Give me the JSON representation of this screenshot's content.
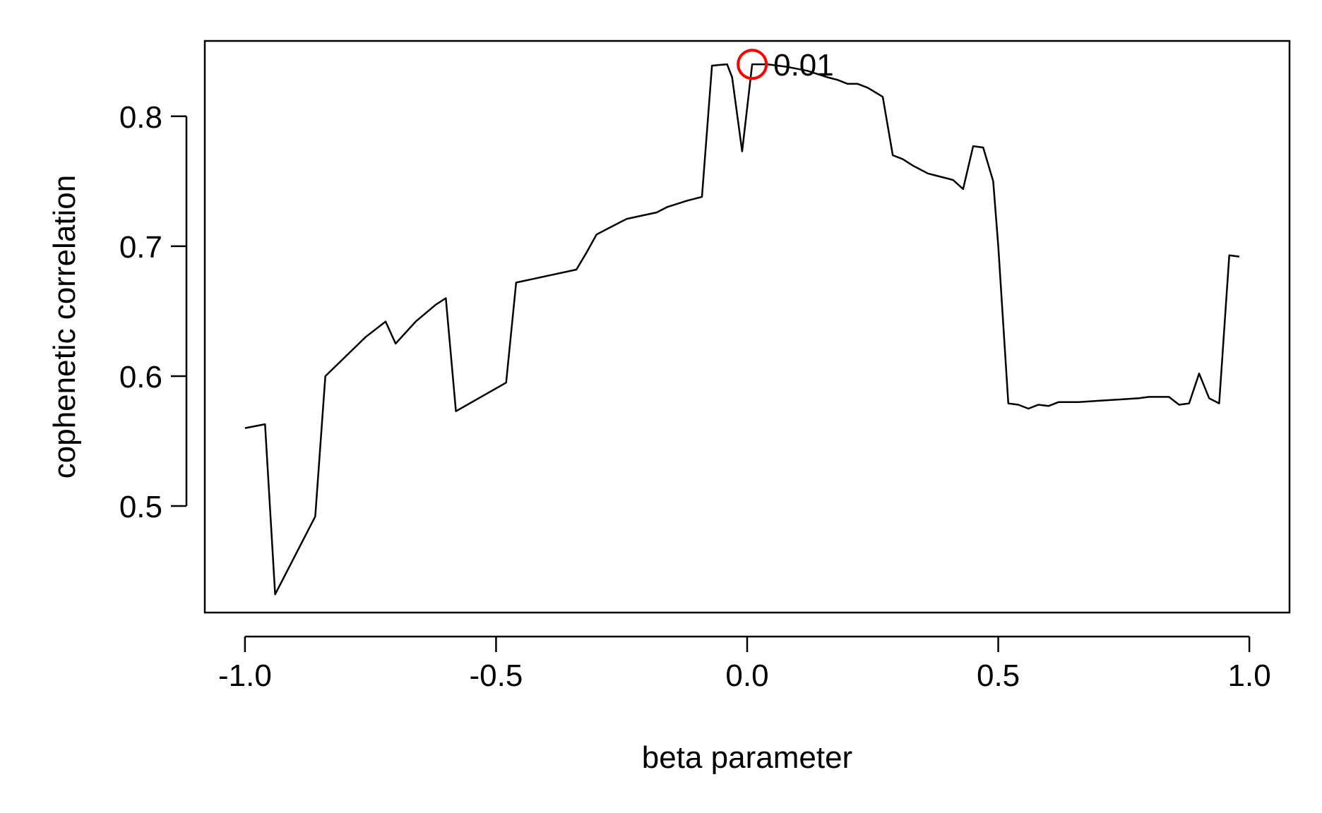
{
  "chart_data": {
    "type": "line",
    "title": "",
    "xlabel": "beta parameter",
    "ylabel": "cophenetic correlation",
    "xlim": [
      -1.08,
      1.08
    ],
    "ylim": [
      0.418,
      0.858
    ],
    "x_ticks": [
      -1.0,
      -0.5,
      0.0,
      0.5,
      1.0
    ],
    "x_tick_labels": [
      "-1.0",
      "-0.5",
      "0.0",
      "0.5",
      "1.0"
    ],
    "y_ticks": [
      0.5,
      0.6,
      0.7,
      0.8
    ],
    "y_tick_labels": [
      "0.5",
      "0.6",
      "0.7",
      "0.8"
    ],
    "grid": false,
    "series": [
      {
        "color": "#000000",
        "x": [
          -1.0,
          -0.96,
          -0.94,
          -0.86,
          -0.84,
          -0.76,
          -0.72,
          -0.7,
          -0.66,
          -0.62,
          -0.6,
          -0.58,
          -0.48,
          -0.46,
          -0.4,
          -0.34,
          -0.32,
          -0.3,
          -0.28,
          -0.24,
          -0.18,
          -0.16,
          -0.12,
          -0.09,
          -0.07,
          -0.04,
          -0.03,
          -0.01,
          0.01,
          0.04,
          0.08,
          0.12,
          0.16,
          0.18,
          0.2,
          0.22,
          0.24,
          0.27,
          0.29,
          0.31,
          0.33,
          0.36,
          0.38,
          0.41,
          0.43,
          0.45,
          0.47,
          0.49,
          0.5,
          0.52,
          0.54,
          0.56,
          0.58,
          0.6,
          0.62,
          0.64,
          0.66,
          0.7,
          0.74,
          0.78,
          0.8,
          0.82,
          0.84,
          0.86,
          0.88,
          0.9,
          0.92,
          0.94,
          0.96,
          0.98
        ],
        "y": [
          0.56,
          0.563,
          0.432,
          0.492,
          0.6,
          0.63,
          0.642,
          0.625,
          0.642,
          0.655,
          0.66,
          0.573,
          0.595,
          0.672,
          0.677,
          0.682,
          0.695,
          0.709,
          0.713,
          0.721,
          0.726,
          0.73,
          0.735,
          0.738,
          0.839,
          0.84,
          0.83,
          0.773,
          0.84,
          0.84,
          0.838,
          0.835,
          0.83,
          0.828,
          0.825,
          0.825,
          0.822,
          0.815,
          0.77,
          0.767,
          0.762,
          0.756,
          0.754,
          0.751,
          0.744,
          0.777,
          0.776,
          0.75,
          0.7,
          0.579,
          0.578,
          0.575,
          0.578,
          0.577,
          0.58,
          0.58,
          0.58,
          0.581,
          0.582,
          0.583,
          0.584,
          0.584,
          0.584,
          0.578,
          0.579,
          0.602,
          0.583,
          0.579,
          0.693,
          0.692
        ]
      }
    ],
    "annotations": [
      {
        "x": 0.01,
        "y": 0.84,
        "marker": "circle",
        "color": "#ff0000",
        "label": "0.01"
      }
    ]
  }
}
